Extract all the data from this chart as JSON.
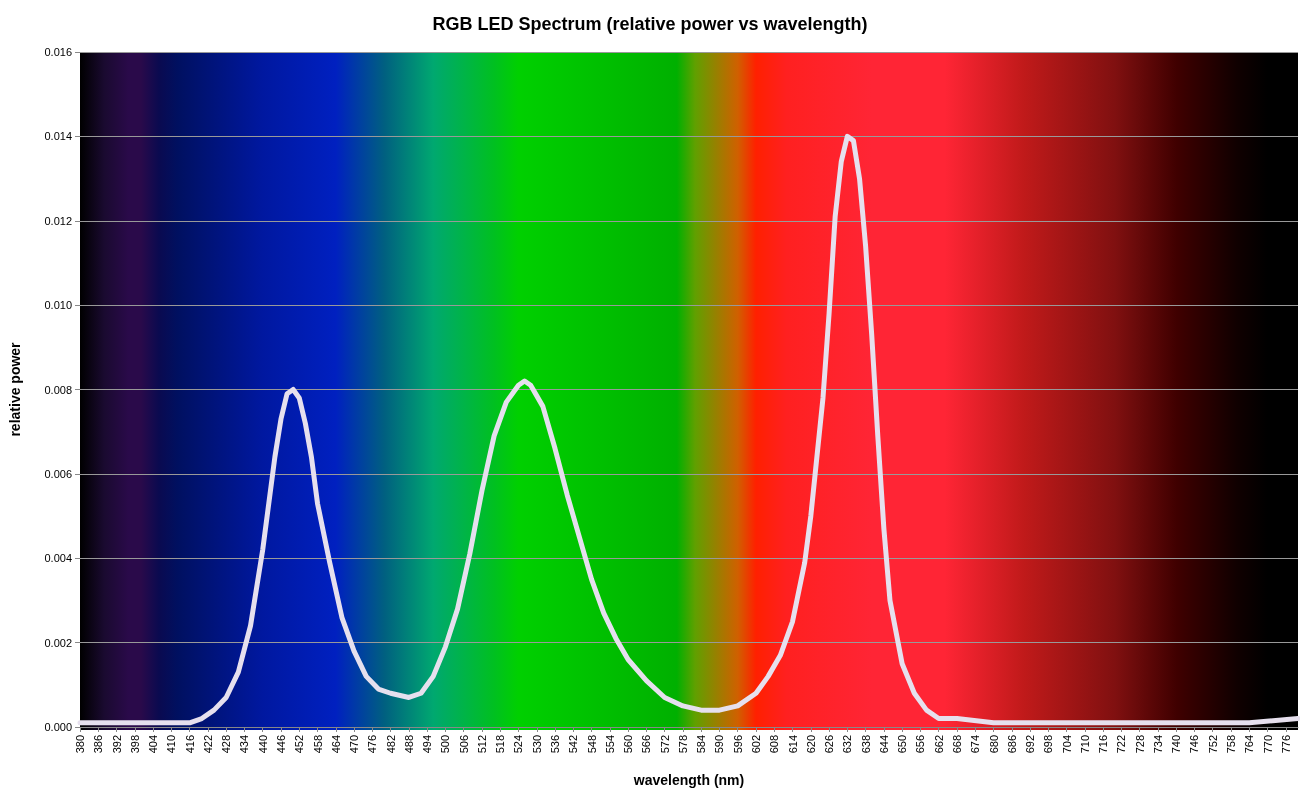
{
  "chart_data": {
    "type": "line",
    "title": "RGB LED Spectrum (relative power vs wavelength)",
    "xlabel": "wavelength (nm)",
    "ylabel": "relative power",
    "x": [
      380,
      384,
      390,
      396,
      400,
      410,
      416,
      420,
      424,
      428,
      432,
      436,
      440,
      444,
      446,
      448,
      450,
      452,
      454,
      456,
      458,
      462,
      466,
      470,
      474,
      478,
      482,
      488,
      492,
      496,
      500,
      504,
      508,
      512,
      516,
      520,
      524,
      526,
      528,
      532,
      536,
      540,
      544,
      548,
      552,
      556,
      560,
      566,
      572,
      578,
      584,
      590,
      596,
      602,
      606,
      610,
      614,
      618,
      620,
      624,
      626,
      628,
      630,
      632,
      634,
      636,
      638,
      640,
      642,
      644,
      646,
      650,
      654,
      658,
      662,
      668,
      680,
      700,
      720,
      740,
      764,
      780
    ],
    "series": [
      {
        "color": "#e6e0ee",
        "values": [
          0.0001,
          0.0001,
          0.0001,
          0.0001,
          0.0001,
          0.0001,
          0.0001,
          0.0002,
          0.0004,
          0.0007,
          0.0013,
          0.0024,
          0.0042,
          0.0064,
          0.0073,
          0.0079,
          0.008,
          0.0078,
          0.0072,
          0.0064,
          0.0053,
          0.0039,
          0.0026,
          0.0018,
          0.0012,
          0.0009,
          0.0008,
          0.0007,
          0.0008,
          0.0012,
          0.0019,
          0.0028,
          0.0041,
          0.0056,
          0.0069,
          0.0077,
          0.0081,
          0.0082,
          0.0081,
          0.0076,
          0.0066,
          0.0055,
          0.0045,
          0.0035,
          0.0027,
          0.0021,
          0.0016,
          0.0011,
          0.0007,
          0.0005,
          0.0004,
          0.0004,
          0.0005,
          0.0008,
          0.0012,
          0.0017,
          0.0025,
          0.0039,
          0.005,
          0.0078,
          0.0098,
          0.0121,
          0.0134,
          0.014,
          0.0139,
          0.013,
          0.0114,
          0.0093,
          0.0069,
          0.0047,
          0.003,
          0.0015,
          0.0008,
          0.0004,
          0.0002,
          0.0002,
          0.0001,
          0.0001,
          0.0001,
          0.0001,
          0.0001,
          0.0002
        ]
      }
    ],
    "xlim": [
      380,
      780
    ],
    "xticks": [
      380,
      386,
      392,
      398,
      404,
      410,
      416,
      422,
      428,
      434,
      440,
      446,
      452,
      458,
      464,
      470,
      476,
      482,
      488,
      494,
      500,
      506,
      512,
      518,
      524,
      530,
      536,
      542,
      548,
      554,
      560,
      566,
      572,
      578,
      584,
      590,
      596,
      602,
      608,
      614,
      620,
      626,
      632,
      638,
      644,
      650,
      656,
      662,
      668,
      674,
      680,
      686,
      692,
      698,
      704,
      710,
      716,
      722,
      728,
      734,
      740,
      746,
      752,
      758,
      764,
      770,
      776
    ],
    "ylim": [
      0,
      0.016
    ],
    "yticks": [
      {
        "value": 0,
        "label": "0.000"
      },
      {
        "value": 0.002,
        "label": "0.002"
      },
      {
        "value": 0.004,
        "label": "0.004"
      },
      {
        "value": 0.006,
        "label": "0.006"
      },
      {
        "value": 0.008,
        "label": "0.008"
      },
      {
        "value": 0.01,
        "label": "0.010"
      },
      {
        "value": 0.012,
        "label": "0.012"
      },
      {
        "value": 0.014,
        "label": "0.014"
      },
      {
        "value": 0.016,
        "label": "0.016"
      }
    ],
    "grid": "y",
    "marker": "none",
    "line_style": "solid"
  }
}
